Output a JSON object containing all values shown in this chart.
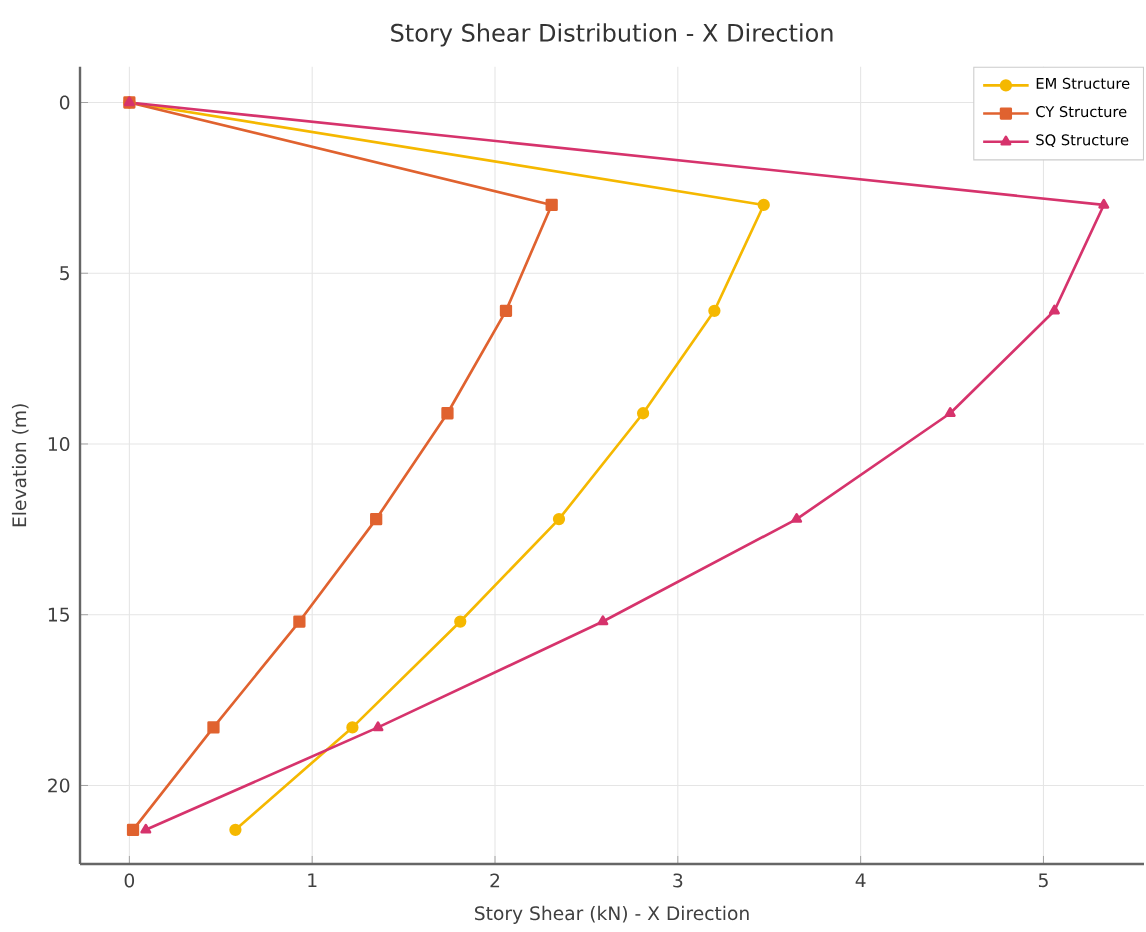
{
  "chart_data": {
    "type": "line",
    "title": "Story Shear Distribution - X Direction",
    "xlabel": "Story Shear (kN) - X Direction",
    "ylabel": "Elevation (m)",
    "series": [
      {
        "name": "EM Structure",
        "color": "#f5b800",
        "marker": "circle",
        "x": [
          0,
          3.47,
          3.2,
          2.81,
          2.35,
          1.81,
          1.22,
          0.58
        ],
        "values": [
          0,
          3,
          6.1,
          9.1,
          12.2,
          15.2,
          18.3,
          21.3
        ]
      },
      {
        "name": "CY Structure",
        "color": "#e0622f",
        "marker": "square",
        "x": [
          0,
          2.31,
          2.06,
          1.74,
          1.35,
          0.93,
          0.46,
          0.02
        ],
        "values": [
          0,
          3,
          6.1,
          9.1,
          12.2,
          15.2,
          18.3,
          21.3
        ]
      },
      {
        "name": "SQ Structure",
        "color": "#d6336c",
        "marker": "triangle",
        "x": [
          0,
          5.33,
          5.06,
          4.49,
          3.65,
          2.59,
          1.36,
          0.09
        ],
        "values": [
          0,
          3,
          6.1,
          9.1,
          12.2,
          15.2,
          18.3,
          21.3
        ]
      }
    ],
    "xlim": [
      -0.27,
      5.55
    ],
    "ylim": [
      22.3,
      -1.05
    ],
    "xticks": [
      0,
      1,
      2,
      3,
      4,
      5
    ],
    "yticks": [
      0,
      5,
      10,
      15,
      20
    ],
    "grid": true,
    "legend": "top right",
    "line_style": "solid"
  }
}
